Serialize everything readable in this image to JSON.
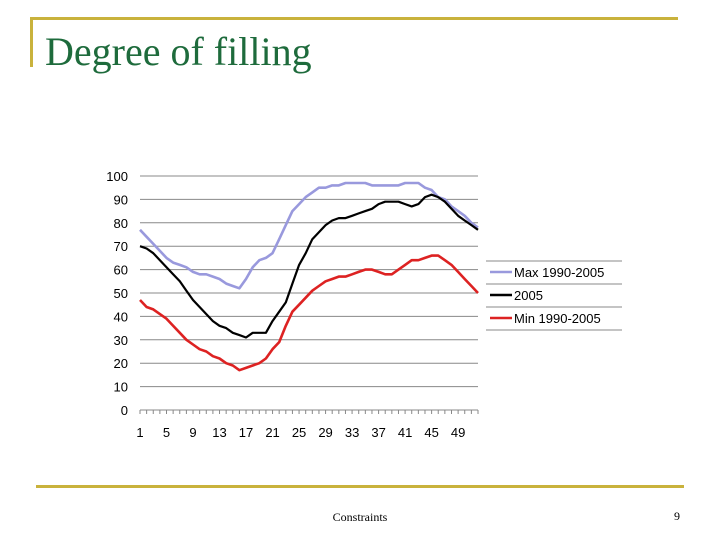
{
  "slide": {
    "title": "Degree of filling",
    "footer": "Constraints",
    "page_number": "9"
  },
  "colors": {
    "frame": "#c9b23c",
    "title": "#1e6b3c",
    "gridline": "#888888"
  },
  "chart_data": {
    "type": "line",
    "title": "",
    "xlabel": "",
    "ylabel": "",
    "ylim": [
      0,
      100
    ],
    "yticks": [
      0,
      10,
      20,
      30,
      40,
      50,
      60,
      70,
      80,
      90,
      100
    ],
    "xlim": [
      1,
      52
    ],
    "xtick_labels": [
      1,
      5,
      9,
      13,
      17,
      21,
      25,
      29,
      33,
      37,
      41,
      45,
      49
    ],
    "legend_position": "right",
    "series": [
      {
        "name": "Max 1990-2005",
        "color": "#9999dd",
        "x": [
          1,
          2,
          3,
          4,
          5,
          6,
          7,
          8,
          9,
          10,
          11,
          12,
          13,
          14,
          15,
          16,
          17,
          18,
          19,
          20,
          21,
          22,
          23,
          24,
          25,
          26,
          27,
          28,
          29,
          30,
          31,
          32,
          33,
          34,
          35,
          36,
          37,
          38,
          39,
          40,
          41,
          42,
          43,
          44,
          45,
          46,
          47,
          48,
          49,
          50,
          51,
          52
        ],
        "values": [
          77,
          74,
          71,
          68,
          65,
          63,
          62,
          61,
          59,
          58,
          58,
          57,
          56,
          54,
          53,
          52,
          56,
          61,
          64,
          65,
          67,
          73,
          79,
          85,
          88,
          91,
          93,
          95,
          95,
          96,
          96,
          97,
          97,
          97,
          97,
          96,
          96,
          96,
          96,
          96,
          97,
          97,
          97,
          95,
          94,
          91,
          90,
          87,
          85,
          83,
          80,
          78
        ]
      },
      {
        "name": "2005",
        "color": "#000000",
        "x": [
          1,
          2,
          3,
          4,
          5,
          6,
          7,
          8,
          9,
          10,
          11,
          12,
          13,
          14,
          15,
          16,
          17,
          18,
          19,
          20,
          21,
          22,
          23,
          24,
          25,
          26,
          27,
          28,
          29,
          30,
          31,
          32,
          33,
          34,
          35,
          36,
          37,
          38,
          39,
          40,
          41,
          42,
          43,
          44,
          45,
          46,
          47,
          48,
          49,
          50,
          51,
          52
        ],
        "values": [
          70,
          69,
          67,
          64,
          61,
          58,
          55,
          51,
          47,
          44,
          41,
          38,
          36,
          35,
          33,
          32,
          31,
          33,
          33,
          33,
          38,
          42,
          46,
          54,
          62,
          67,
          73,
          76,
          79,
          81,
          82,
          82,
          83,
          84,
          85,
          86,
          88,
          89,
          89,
          89,
          88,
          87,
          88,
          91,
          92,
          91,
          89,
          86,
          83,
          81,
          79,
          77
        ]
      },
      {
        "name": "Min 1990-2005",
        "color": "#dd2222",
        "x": [
          1,
          2,
          3,
          4,
          5,
          6,
          7,
          8,
          9,
          10,
          11,
          12,
          13,
          14,
          15,
          16,
          17,
          18,
          19,
          20,
          21,
          22,
          23,
          24,
          25,
          26,
          27,
          28,
          29,
          30,
          31,
          32,
          33,
          34,
          35,
          36,
          37,
          38,
          39,
          40,
          41,
          42,
          43,
          44,
          45,
          46,
          47,
          48,
          49,
          50,
          51,
          52
        ],
        "values": [
          47,
          44,
          43,
          41,
          39,
          36,
          33,
          30,
          28,
          26,
          25,
          23,
          22,
          20,
          19,
          17,
          18,
          19,
          20,
          22,
          26,
          29,
          36,
          42,
          45,
          48,
          51,
          53,
          55,
          56,
          57,
          57,
          58,
          59,
          60,
          60,
          59,
          58,
          58,
          60,
          62,
          64,
          64,
          65,
          66,
          66,
          64,
          62,
          59,
          56,
          53,
          50
        ]
      }
    ]
  }
}
